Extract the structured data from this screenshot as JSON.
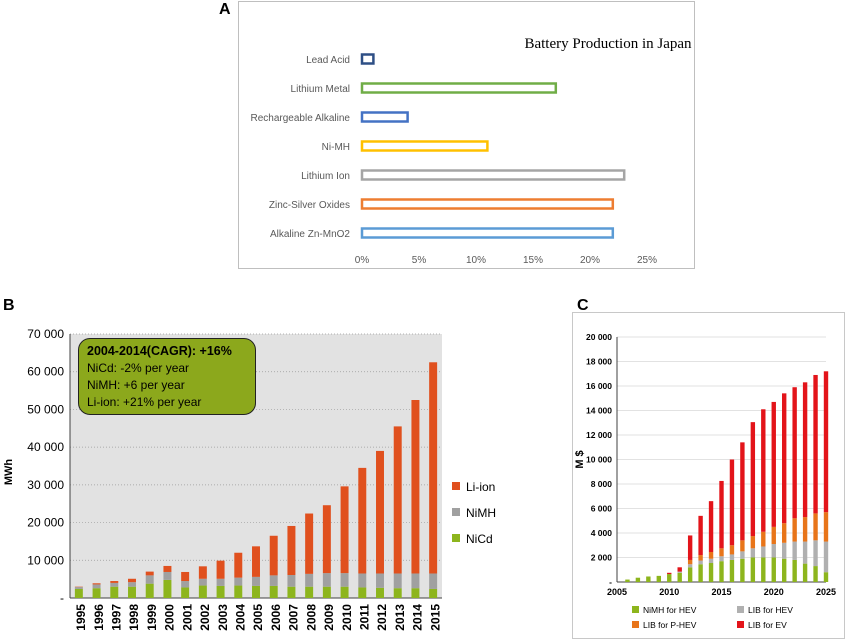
{
  "labels": {
    "a": "A",
    "b": "B",
    "c": "C"
  },
  "colors": {
    "lead_acid": "#2e4f85",
    "lithium_metal": "#70ad47",
    "rechargeable_alkaline": "#4472c4",
    "nimh_a": "#ffc000",
    "lithium_ion_a": "#a5a5a5",
    "zinc_silver": "#ed7d31",
    "alkaline": "#5b9bd5",
    "li_ion": "#e0501e",
    "nimh": "#a0a0a0",
    "nicd": "#8db51d",
    "lib_ev": "#e3141a",
    "lib_phev": "#e8751a",
    "lib_hev": "#b0b0b0",
    "nimh_hev": "#8db51d",
    "plot_bg": "#e2e2e2"
  },
  "annotation": {
    "headline": "2004-2014(CAGR): +16%",
    "line1": "NiCd: -2% per year",
    "line2": "NiMH: +6 per year",
    "line3": "Li-ion: +21% per year"
  },
  "chart_data": [
    {
      "id": "A",
      "type": "bar",
      "orientation": "horizontal",
      "title": "Battery Production in Japan",
      "categories": [
        "Lead Acid",
        "Lithium Metal",
        "Rechargeable Alkaline",
        "Ni-MH",
        "Lithium Ion",
        "Zinc-Silver Oxides",
        "Alkaline Zn-MnO2"
      ],
      "values": [
        1,
        17,
        4,
        11,
        23,
        22,
        22
      ],
      "xlim": [
        0,
        25
      ],
      "xticks": [
        0,
        5,
        10,
        15,
        20,
        25
      ],
      "xtick_labels": [
        "0%",
        "5%",
        "10%",
        "15%",
        "20%",
        "25%"
      ],
      "bar_colors": [
        "#2e4f85",
        "#70ad47",
        "#4472c4",
        "#ffc000",
        "#a5a5a5",
        "#ed7d31",
        "#5b9bd5"
      ]
    },
    {
      "id": "B",
      "type": "bar",
      "stacked": true,
      "ylabel": "MWh",
      "categories": [
        "1995",
        "1996",
        "1997",
        "1998",
        "1999",
        "2000",
        "2001",
        "2002",
        "2003",
        "2004",
        "2005",
        "2006",
        "2007",
        "2008",
        "2009",
        "2010",
        "2011",
        "2012",
        "2013",
        "2014",
        "2015"
      ],
      "ylim": [
        0,
        70000
      ],
      "yticks": [
        0,
        10000,
        20000,
        30000,
        40000,
        50000,
        60000,
        70000
      ],
      "ytick_labels": [
        "-",
        "10 000",
        "20 000",
        "30 000",
        "40 000",
        "50 000",
        "60 000",
        "70 000"
      ],
      "series": [
        {
          "name": "NiCd",
          "values": [
            2400,
            2600,
            3000,
            3000,
            3800,
            4800,
            2800,
            3300,
            3200,
            3300,
            3200,
            3200,
            3000,
            3000,
            3000,
            3000,
            2800,
            2700,
            2600,
            2600,
            2400
          ]
        },
        {
          "name": "NiMH",
          "values": [
            500,
            1000,
            1000,
            1200,
            2200,
            2100,
            1700,
            1800,
            1900,
            2100,
            2400,
            2800,
            3100,
            3400,
            3600,
            3600,
            3700,
            3800,
            3900,
            3900,
            4100
          ]
        },
        {
          "name": "Li-ion",
          "values": [
            100,
            300,
            500,
            900,
            1000,
            1600,
            2400,
            3300,
            4800,
            6600,
            8100,
            10500,
            13000,
            16000,
            18000,
            23000,
            28000,
            32500,
            39000,
            46000,
            56000
          ]
        }
      ],
      "legend": [
        "Li-ion",
        "NiMH",
        "NiCd"
      ]
    },
    {
      "id": "C",
      "type": "bar",
      "stacked": true,
      "ylabel": "M $",
      "x": [
        2006,
        2007,
        2008,
        2009,
        2010,
        2011,
        2012,
        2013,
        2014,
        2015,
        2016,
        2017,
        2018,
        2019,
        2020,
        2021,
        2022,
        2023,
        2024,
        2025
      ],
      "xlim": [
        2005,
        2025
      ],
      "xticks": [
        2005,
        2010,
        2015,
        2020,
        2025
      ],
      "ylim": [
        0,
        20000
      ],
      "yticks": [
        0,
        2000,
        4000,
        6000,
        8000,
        10000,
        12000,
        14000,
        16000,
        18000,
        20000
      ],
      "ytick_labels": [
        "-",
        "2 000",
        "4 000",
        "6 000",
        "8 000",
        "10 000",
        "12 000",
        "14 000",
        "16 000",
        "18 000",
        "20 000"
      ],
      "series": [
        {
          "name": "NiMH for HEV",
          "values": [
            200,
            350,
            450,
            500,
            650,
            750,
            1200,
            1450,
            1550,
            1700,
            1800,
            1900,
            2000,
            2000,
            2000,
            1900,
            1800,
            1500,
            1300,
            800
          ]
        },
        {
          "name": "LIB for HEV",
          "values": [
            0,
            0,
            0,
            0,
            0,
            100,
            250,
            300,
            350,
            400,
            450,
            600,
            750,
            900,
            1100,
            1300,
            1500,
            1800,
            2100,
            2500
          ]
        },
        {
          "name": "LIB for P-HEV",
          "values": [
            0,
            0,
            0,
            0,
            0,
            0,
            350,
            450,
            550,
            650,
            750,
            900,
            1000,
            1200,
            1400,
            1600,
            1900,
            2000,
            2200,
            2400
          ]
        },
        {
          "name": "LIB for EV",
          "values": [
            0,
            0,
            0,
            0,
            100,
            350,
            2000,
            3200,
            4150,
            5500,
            7000,
            8000,
            9300,
            10000,
            10200,
            10600,
            10700,
            11000,
            11300,
            11500
          ]
        }
      ],
      "legend": [
        "NiMH for HEV",
        "LIB for HEV",
        "LIB for P-HEV",
        "LIB for EV"
      ]
    }
  ]
}
